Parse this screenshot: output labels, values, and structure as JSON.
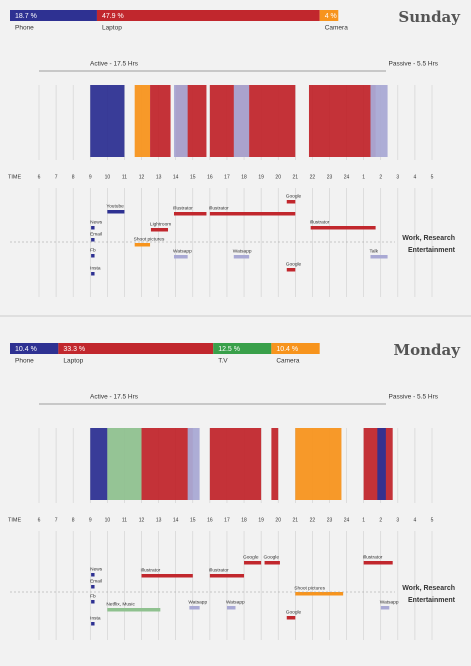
{
  "panels": [
    {
      "day": "Sunday",
      "devices": {
        "names": [
          "Phone",
          "Laptop",
          "Camera"
        ],
        "values": [
          18.7,
          47.9,
          4
        ],
        "value_labels": [
          "18.7 %",
          "47.9 %",
          "4 %"
        ],
        "colors": [
          "#2e3192",
          "#c1272d",
          "#f7941d"
        ]
      },
      "active": "Active - 17.5 Hrs",
      "passive": "Passive - 5.5 Hrs",
      "time_label": "TIME",
      "xlim": [
        6,
        29
      ],
      "xticks": [
        6,
        7,
        8,
        9,
        10,
        11,
        12,
        13,
        14,
        15,
        16,
        17,
        18,
        19,
        20,
        21,
        22,
        23,
        24,
        {
          "value": 25,
          "label": "1"
        },
        {
          "value": 26,
          "label": "2"
        },
        {
          "value": 27,
          "label": "3"
        },
        {
          "value": 28,
          "label": "4"
        },
        {
          "value": 29,
          "label": "5"
        }
      ],
      "blocks": [
        {
          "start": 9,
          "end": 11,
          "color": "#2e3192"
        },
        {
          "start": 11.6,
          "end": 12.5,
          "color": "#f7941d"
        },
        {
          "start": 12.5,
          "end": 13.7,
          "color": "#c1272d"
        },
        {
          "start": 14,
          "end": 15.8,
          "color": "#c1272d"
        },
        {
          "start": 16,
          "end": 21,
          "color": "#c1272d"
        },
        {
          "start": 21.8,
          "end": 25.7,
          "color": "#c1272d"
        },
        {
          "start": 13.9,
          "end": 14.7,
          "color": "#a9a9d4"
        },
        {
          "start": 17.4,
          "end": 18.3,
          "color": "#a9a9d4"
        },
        {
          "start": 25.4,
          "end": 26.4,
          "color": "#a9a9d4"
        }
      ],
      "activities": [
        {
          "label": "Youtube",
          "start": 10,
          "end": 11,
          "color": "#2e3192"
        },
        {
          "label": "News",
          "start": 9.05,
          "end": 9.25,
          "color": "#2e3192"
        },
        {
          "label": "Lightroom",
          "start": 12.55,
          "end": 13.55,
          "color": "#c1272d"
        },
        {
          "label": "Illustrator",
          "start": 13.9,
          "end": 15.8,
          "color": "#c1272d"
        },
        {
          "label": "Illustrator",
          "start": 16,
          "end": 21,
          "color": "#c1272d"
        },
        {
          "label": "Google",
          "start": 20.5,
          "end": 21,
          "color": "#c1272d"
        },
        {
          "label": "Illustrator",
          "start": 21.9,
          "end": 25.7,
          "color": "#c1272d"
        },
        {
          "label": "Email",
          "start": 9.05,
          "end": 9.25,
          "color": "#2e3192"
        },
        {
          "label": "Shoot pictures",
          "start": 11.6,
          "end": 12.5,
          "color": "#f7941d"
        },
        {
          "label": "Fb",
          "start": 9.05,
          "end": 9.25,
          "color": "#2e3192"
        },
        {
          "label": "Watsapp",
          "start": 13.9,
          "end": 14.7,
          "color": "#a9a9d4"
        },
        {
          "label": "Watsapp",
          "start": 17.4,
          "end": 18.3,
          "color": "#a9a9d4"
        },
        {
          "label": "Talk",
          "start": 25.4,
          "end": 26.4,
          "color": "#a9a9d4"
        },
        {
          "label": "Insta",
          "start": 9.05,
          "end": 9.25,
          "color": "#2e3192"
        },
        {
          "label": "Google",
          "start": 20.5,
          "end": 21,
          "color": "#c1272d"
        }
      ],
      "work_label": "Work, Research",
      "entertainment_label": "Entertainment"
    },
    {
      "day": "Monday",
      "devices": {
        "names": [
          "Phone",
          "Laptop",
          "T.V",
          "Camera"
        ],
        "values": [
          10.4,
          33.3,
          12.5,
          10.4
        ],
        "value_labels": [
          "10.4 %",
          "33.3 %",
          "12.5 %",
          "10.4 %"
        ],
        "colors": [
          "#2e3192",
          "#c1272d",
          "#39a04a",
          "#f7941d"
        ]
      },
      "active": "Active - 17.5 Hrs",
      "passive": "Passive - 5.5 Hrs",
      "time_label": "TIME",
      "xlim": [
        6,
        29
      ],
      "xticks": [
        6,
        7,
        8,
        9,
        10,
        11,
        12,
        13,
        14,
        15,
        16,
        17,
        18,
        19,
        20,
        21,
        22,
        23,
        24,
        {
          "value": 25,
          "label": "1"
        },
        {
          "value": 26,
          "label": "2"
        },
        {
          "value": 27,
          "label": "3"
        },
        {
          "value": 28,
          "label": "4"
        },
        {
          "value": 29,
          "label": "5"
        }
      ],
      "blocks": [
        {
          "start": 9,
          "end": 10,
          "color": "#2e3192"
        },
        {
          "start": 10,
          "end": 12,
          "color": "#8fc18f"
        },
        {
          "start": 12,
          "end": 15,
          "color": "#c1272d"
        },
        {
          "start": 16,
          "end": 19,
          "color": "#c1272d"
        },
        {
          "start": 19.6,
          "end": 20,
          "color": "#c1272d"
        },
        {
          "start": 21,
          "end": 23.7,
          "color": "#f7941d"
        },
        {
          "start": 25,
          "end": 26.7,
          "color": "#c1272d"
        },
        {
          "start": 14.7,
          "end": 15.4,
          "color": "#a9a9d4"
        },
        {
          "start": 25.8,
          "end": 26.3,
          "color": "#2e3192"
        }
      ],
      "activities": [
        {
          "label": "News",
          "start": 9.05,
          "end": 9.25,
          "color": "#2e3192"
        },
        {
          "label": "Email",
          "start": 9.05,
          "end": 9.25,
          "color": "#2e3192"
        },
        {
          "label": "Fb",
          "start": 9.05,
          "end": 9.25,
          "color": "#2e3192"
        },
        {
          "label": "Insta",
          "start": 9.05,
          "end": 9.25,
          "color": "#2e3192"
        },
        {
          "label": "Illustrator",
          "start": 12,
          "end": 15,
          "color": "#c1272d"
        },
        {
          "label": "Illustrator",
          "start": 16,
          "end": 18,
          "color": "#c1272d"
        },
        {
          "label": "Google",
          "start": 18,
          "end": 19,
          "color": "#c1272d"
        },
        {
          "label": "Google",
          "start": 19.2,
          "end": 20.1,
          "color": "#c1272d"
        },
        {
          "label": "Illustrator",
          "start": 25,
          "end": 26.7,
          "color": "#c1272d"
        },
        {
          "label": "Shoot pictures",
          "start": 21,
          "end": 23.8,
          "color": "#f7941d"
        },
        {
          "label": "Netflix, Music",
          "start": 10,
          "end": 13.1,
          "color": "#8fc18f"
        },
        {
          "label": "Watsapp",
          "start": 14.8,
          "end": 15.4,
          "color": "#a9a9d4"
        },
        {
          "label": "Watsapp",
          "start": 17,
          "end": 17.5,
          "color": "#a9a9d4"
        },
        {
          "label": "Watsapp",
          "start": 26,
          "end": 26.5,
          "color": "#a9a9d4"
        },
        {
          "label": "Google",
          "start": 20.5,
          "end": 21,
          "color": "#c1272d"
        }
      ],
      "work_label": "Work, Research",
      "entertainment_label": "Entertainment"
    }
  ]
}
